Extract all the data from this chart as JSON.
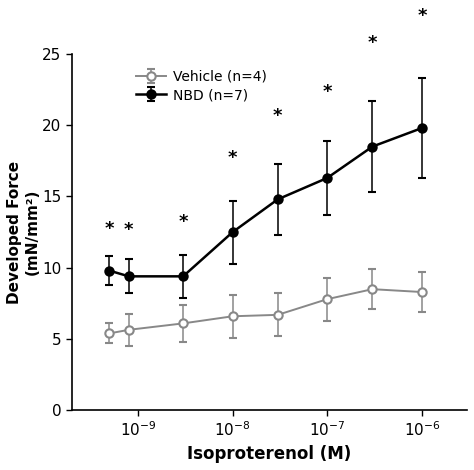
{
  "x_values": [
    5e-10,
    8e-10,
    3e-09,
    1e-08,
    3e-08,
    1e-07,
    3e-07,
    1e-06
  ],
  "vehicle_mean": [
    5.4,
    5.65,
    6.1,
    6.6,
    6.7,
    7.8,
    8.5,
    8.3
  ],
  "vehicle_err": [
    0.7,
    1.1,
    1.3,
    1.5,
    1.5,
    1.5,
    1.4,
    1.4
  ],
  "nbd_mean": [
    9.8,
    9.4,
    9.4,
    12.5,
    14.8,
    16.3,
    18.5,
    19.8
  ],
  "nbd_err": [
    1.0,
    1.2,
    1.5,
    2.2,
    2.5,
    2.6,
    3.2,
    3.5
  ],
  "star_x_nbd": [
    5e-10,
    8e-10,
    3e-09,
    1e-08,
    3e-08,
    1e-07,
    3e-07,
    1e-06
  ],
  "star_y_nbd_offset": [
    1.3,
    1.4,
    1.7,
    2.4,
    2.7,
    2.8,
    3.4,
    3.7
  ],
  "xlabel": "Isoproterenol (M)",
  "ylabel": "Developed Force\n(mN/mm²)",
  "ylim": [
    0,
    25
  ],
  "yticks": [
    0,
    5,
    10,
    15,
    20,
    25
  ],
  "xlim_left": 2e-10,
  "xlim_right": 3e-06,
  "xtick_positions": [
    1e-09,
    1e-08,
    1e-07,
    1e-06
  ],
  "xtick_labels": [
    "10$^{-9}$",
    "10$^{-8}$",
    "10$^{-7}$",
    "10$^{-6}$"
  ],
  "legend_vehicle": "Vehicle (n=4)",
  "legend_nbd": "NBD (n=7)",
  "vehicle_color": "#888888",
  "nbd_color": "#000000",
  "background_color": "#ffffff",
  "title_fontsize": 12,
  "label_fontsize": 12,
  "tick_fontsize": 11
}
